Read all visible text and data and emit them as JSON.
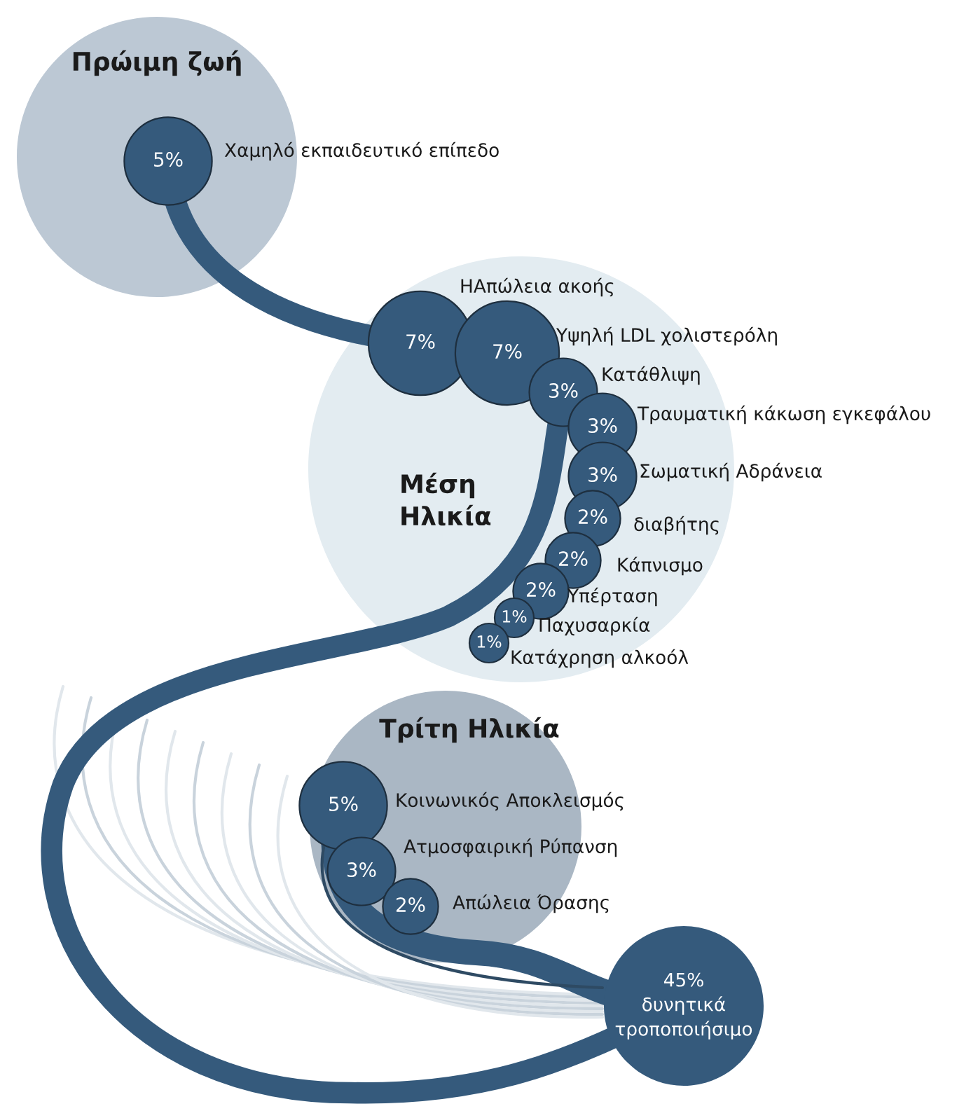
{
  "chart_data": {
    "type": "other",
    "categories": [
      "Χαμηλό εκπαιδευτικό επίπεδο",
      "ΗΑπώλεια ακοής",
      "Υψηλή LDL χολιστερόλη",
      "Κατάθλιψη",
      "Τραυματική κάκωση εγκεφάλου",
      "Σωματική Αδράνεια",
      "διαβήτης",
      "Κάπνισμο",
      "Υπέρταση",
      "Παχυσαρκία",
      "Κατάχρηση αλκοόλ",
      "Κοινωνικός Αποκλεισμός",
      "Ατμοσφαιρική Ρύπανση",
      "Απώλεια Όρασης"
    ],
    "series": [
      {
        "name": "Πρώιμη ζωή",
        "color": "#355a7c",
        "values": [
          5,
          null,
          null,
          null,
          null,
          null,
          null,
          null,
          null,
          null,
          null,
          null,
          null,
          null
        ],
        "value_labels": [
          "5%",
          null,
          null,
          null,
          null,
          null,
          null,
          null,
          null,
          null,
          null,
          null,
          null,
          null
        ]
      },
      {
        "name": "Μέση\nΗλικία",
        "color": "#355a7c",
        "values": [
          null,
          7,
          7,
          3,
          3,
          3,
          2,
          2,
          2,
          1,
          1,
          null,
          null,
          null
        ],
        "value_labels": [
          null,
          "7%",
          "7%",
          "3%",
          "3%",
          "3%",
          "2%",
          "2%",
          "2%",
          "1%",
          "1%",
          null,
          null,
          null
        ]
      },
      {
        "name": "Τρίτη Ηλικία",
        "color": "#355a7c",
        "values": [
          null,
          null,
          null,
          null,
          null,
          null,
          null,
          null,
          null,
          null,
          null,
          5,
          3,
          2
        ],
        "value_labels": [
          null,
          null,
          null,
          null,
          null,
          null,
          null,
          null,
          null,
          null,
          null,
          "5%",
          "3%",
          "2%"
        ]
      }
    ],
    "annotations": [
      "45%\nδυνητικά\nτροποποιήσιμο"
    ]
  }
}
